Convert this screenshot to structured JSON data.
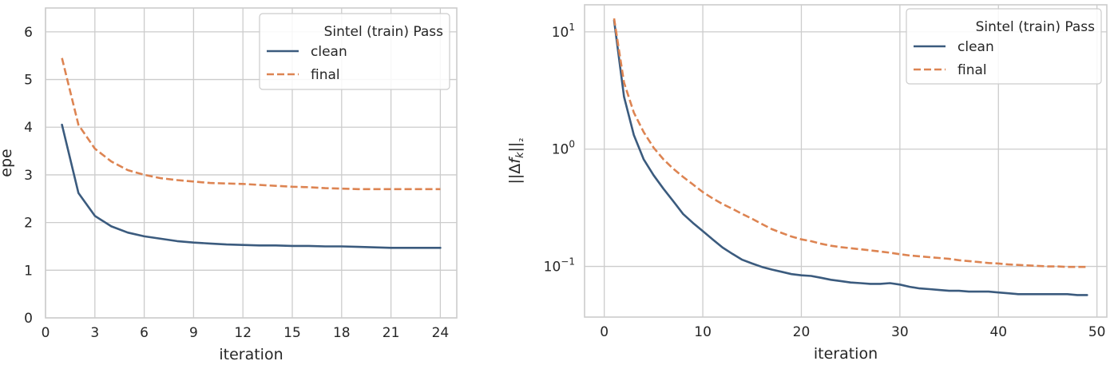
{
  "chart_data": [
    {
      "type": "line",
      "xlabel": "iteration",
      "ylabel": "epe",
      "xlim": [
        0,
        25
      ],
      "ylim": [
        0,
        6.5
      ],
      "xticks": [
        0,
        3,
        6,
        9,
        12,
        15,
        18,
        21,
        24
      ],
      "yticks": [
        0,
        1,
        2,
        3,
        4,
        5,
        6
      ],
      "yscale": "linear",
      "grid": true,
      "legend": {
        "title": "Sintel (train) Pass",
        "placement": "top-right"
      },
      "x": [
        1,
        2,
        3,
        4,
        5,
        6,
        7,
        8,
        9,
        10,
        11,
        12,
        13,
        14,
        15,
        16,
        17,
        18,
        19,
        20,
        21,
        22,
        23,
        24
      ],
      "series": [
        {
          "name": "clean",
          "color": "#3b5b7e",
          "style": "solid",
          "values": [
            4.05,
            2.62,
            2.14,
            1.92,
            1.79,
            1.71,
            1.66,
            1.61,
            1.58,
            1.56,
            1.54,
            1.53,
            1.52,
            1.52,
            1.51,
            1.51,
            1.5,
            1.5,
            1.49,
            1.48,
            1.47,
            1.47,
            1.47,
            1.47
          ]
        },
        {
          "name": "final",
          "color": "#dd8452",
          "style": "dashed",
          "values": [
            5.45,
            4.05,
            3.55,
            3.28,
            3.1,
            3.0,
            2.93,
            2.89,
            2.86,
            2.83,
            2.82,
            2.81,
            2.79,
            2.77,
            2.75,
            2.74,
            2.72,
            2.71,
            2.7,
            2.7,
            2.7,
            2.7,
            2.7,
            2.7
          ]
        }
      ]
    },
    {
      "type": "line",
      "xlabel": "iteration",
      "ylabel": "||Δf_k||₂",
      "xlim": [
        -2,
        51
      ],
      "ylim": [
        0.037,
        17
      ],
      "xticks": [
        0,
        10,
        20,
        30,
        40,
        50
      ],
      "yticks": [
        0.1,
        1,
        10
      ],
      "ytick_labels": [
        {
          "base": "10",
          "exp": "−1"
        },
        {
          "base": "10",
          "exp": "0"
        },
        {
          "base": "10",
          "exp": "1"
        }
      ],
      "yscale": "log",
      "grid": true,
      "legend": {
        "title": "Sintel (train) Pass",
        "placement": "top-right"
      },
      "x": [
        1,
        2,
        3,
        4,
        5,
        6,
        7,
        8,
        9,
        10,
        11,
        12,
        13,
        14,
        15,
        16,
        17,
        18,
        19,
        20,
        21,
        22,
        23,
        24,
        25,
        26,
        27,
        28,
        29,
        30,
        31,
        32,
        33,
        34,
        35,
        36,
        37,
        38,
        39,
        40,
        41,
        42,
        43,
        44,
        45,
        46,
        47,
        48,
        49
      ],
      "series": [
        {
          "name": "clean",
          "color": "#3b5b7e",
          "style": "solid",
          "values": [
            12.5,
            2.8,
            1.32,
            0.82,
            0.6,
            0.46,
            0.36,
            0.28,
            0.235,
            0.2,
            0.17,
            0.145,
            0.128,
            0.114,
            0.106,
            0.099,
            0.094,
            0.09,
            0.086,
            0.084,
            0.083,
            0.08,
            0.077,
            0.075,
            0.073,
            0.072,
            0.071,
            0.071,
            0.072,
            0.07,
            0.067,
            0.065,
            0.064,
            0.063,
            0.062,
            0.062,
            0.061,
            0.061,
            0.061,
            0.06,
            0.059,
            0.058,
            0.058,
            0.058,
            0.058,
            0.058,
            0.058,
            0.057,
            0.057
          ]
        },
        {
          "name": "final",
          "color": "#dd8452",
          "style": "dashed",
          "values": [
            13.0,
            3.7,
            2.05,
            1.4,
            1.03,
            0.82,
            0.68,
            0.58,
            0.5,
            0.43,
            0.38,
            0.34,
            0.31,
            0.28,
            0.255,
            0.23,
            0.208,
            0.193,
            0.18,
            0.17,
            0.164,
            0.156,
            0.15,
            0.146,
            0.143,
            0.14,
            0.137,
            0.134,
            0.131,
            0.127,
            0.124,
            0.122,
            0.12,
            0.118,
            0.116,
            0.113,
            0.111,
            0.109,
            0.107,
            0.106,
            0.104,
            0.103,
            0.102,
            0.101,
            0.1,
            0.1,
            0.099,
            0.099,
            0.099
          ]
        }
      ]
    }
  ]
}
